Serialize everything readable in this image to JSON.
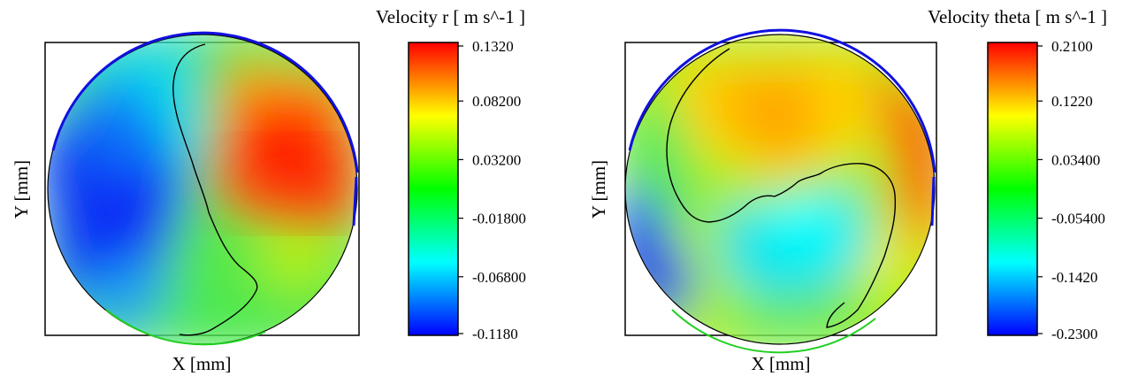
{
  "panels": [
    {
      "colorbar_title": "Velocity r [ m s^-1 ]",
      "xlabel": "X [mm]",
      "ylabel": "Y [mm]",
      "colorbar_ticks": [
        "0.1320",
        "0.08200",
        "0.03200",
        "-0.01800",
        "-0.06800",
        "-0.1180"
      ]
    },
    {
      "colorbar_title": "Velocity theta [ m s^-1 ]",
      "xlabel": "X [mm]",
      "ylabel": "Y [mm]",
      "colorbar_ticks": [
        "0.2100",
        "0.1220",
        "0.03400",
        "-0.05400",
        "-0.1420",
        "-0.2300"
      ]
    }
  ],
  "chart_data": [
    {
      "type": "heatmap",
      "title": "Velocity r [ m s^-1 ]",
      "xlabel": "X [mm]",
      "ylabel": "Y [mm]",
      "colorscale": [
        "#0000ff",
        "#00ffff",
        "#00ff00",
        "#ffff00",
        "#ff0000"
      ],
      "clim": [
        -0.118,
        0.132
      ],
      "colorbar_ticks": [
        0.132,
        0.082,
        0.032,
        -0.018,
        -0.068,
        -0.118
      ],
      "regions": [
        {
          "name": "left",
          "value": -0.11
        },
        {
          "name": "right",
          "value": 0.12
        },
        {
          "name": "lower",
          "value": 0.01
        },
        {
          "name": "upper",
          "value": 0.02
        }
      ],
      "contour_level": 0.0
    },
    {
      "type": "heatmap",
      "title": "Velocity theta [ m s^-1 ]",
      "xlabel": "X [mm]",
      "ylabel": "Y [mm]",
      "colorscale": [
        "#0000ff",
        "#00ffff",
        "#00ff00",
        "#ffff00",
        "#ff0000"
      ],
      "clim": [
        -0.23,
        0.21
      ],
      "colorbar_ticks": [
        0.21,
        0.122,
        0.034,
        -0.054,
        -0.142,
        -0.23
      ],
      "regions": [
        {
          "name": "upper-center",
          "value": 0.14
        },
        {
          "name": "lower-center",
          "value": -0.11
        },
        {
          "name": "left-edge",
          "value": -0.22
        },
        {
          "name": "right-edge",
          "value": 0.2
        }
      ],
      "contour_level": 0.0
    }
  ]
}
